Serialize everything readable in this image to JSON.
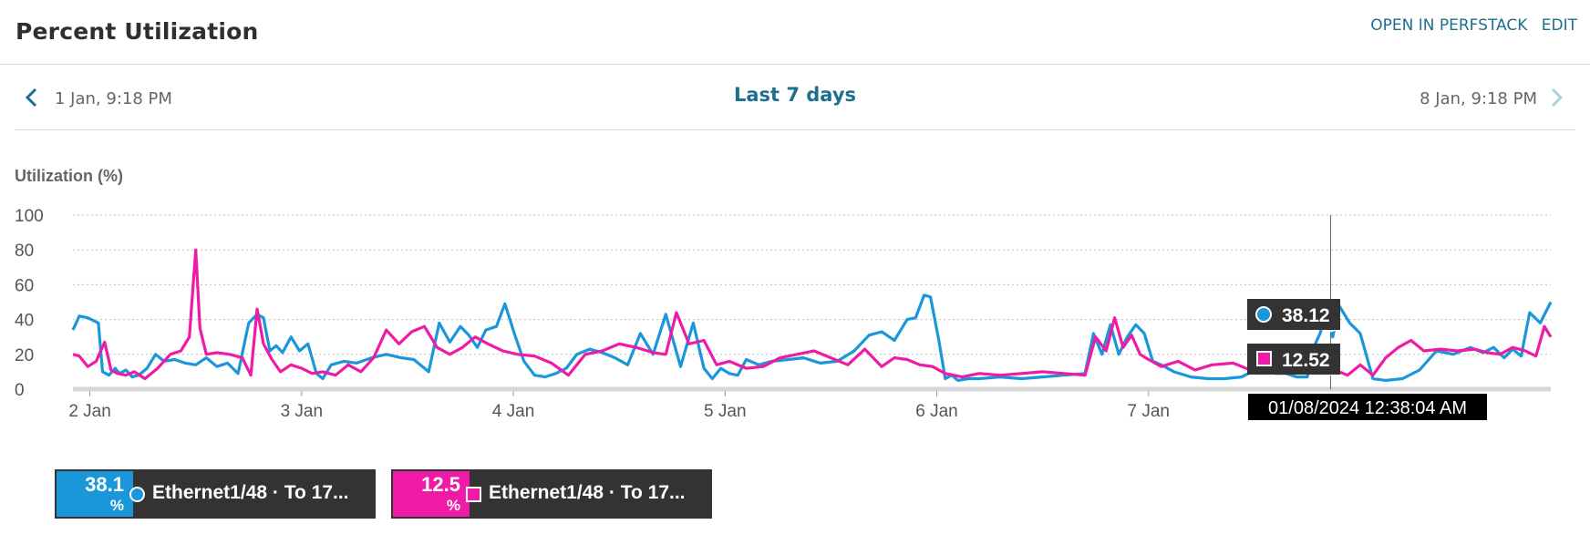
{
  "header": {
    "title": "Percent Utilization",
    "open_perfstack": "OPEN IN PERFSTACK",
    "edit": "EDIT"
  },
  "nav": {
    "start_date": "1 Jan, 9:18 PM",
    "range_label": "Last 7 days",
    "end_date": "8 Jan, 9:18 PM",
    "prev_icon": "chevron-left-icon",
    "next_icon": "chevron-right-icon"
  },
  "colors": {
    "series1": "#1a97da",
    "series2": "#ef1aa6",
    "accent": "#1c6f8f"
  },
  "chart_data": {
    "type": "line",
    "title": "Percent Utilization",
    "ylabel": "Utilization (%)",
    "xlabel": "",
    "ylim": [
      0,
      100
    ],
    "yticks": [
      0,
      20,
      40,
      60,
      80,
      100
    ],
    "xlim": [
      1.92,
      8.9
    ],
    "xticks": [
      {
        "pos": 2,
        "label": "2 Jan"
      },
      {
        "pos": 3,
        "label": "3 Jan"
      },
      {
        "pos": 4,
        "label": "4 Jan"
      },
      {
        "pos": 5,
        "label": "5 Jan"
      },
      {
        "pos": 6,
        "label": "6 Jan"
      },
      {
        "pos": 7,
        "label": "7 Jan"
      }
    ],
    "grid": true,
    "legend": "bottom",
    "series": [
      {
        "name": "Ethernet1/48 · To 17...",
        "marker": "circle",
        "x": [
          1.92,
          1.95,
          1.99,
          2.04,
          2.06,
          2.09,
          2.12,
          2.14,
          2.17,
          2.2,
          2.23,
          2.27,
          2.31,
          2.35,
          2.4,
          2.45,
          2.5,
          2.55,
          2.6,
          2.65,
          2.7,
          2.75,
          2.79,
          2.82,
          2.85,
          2.88,
          2.91,
          2.95,
          2.99,
          3.03,
          3.07,
          3.1,
          3.14,
          3.2,
          3.26,
          3.33,
          3.4,
          3.47,
          3.53,
          3.6,
          3.65,
          3.7,
          3.75,
          3.79,
          3.83,
          3.87,
          3.92,
          3.96,
          4.01,
          4.05,
          4.1,
          4.15,
          4.2,
          4.25,
          4.3,
          4.36,
          4.42,
          4.48,
          4.54,
          4.6,
          4.66,
          4.72,
          4.79,
          4.85,
          4.9,
          4.94,
          4.98,
          5.02,
          5.06,
          5.1,
          5.16,
          5.22,
          5.3,
          5.37,
          5.45,
          5.53,
          5.61,
          5.68,
          5.74,
          5.8,
          5.86,
          5.9,
          5.94,
          5.97,
          6.01,
          6.04,
          6.07,
          6.1,
          6.15,
          6.2,
          6.3,
          6.4,
          6.5,
          6.6,
          6.7,
          6.74,
          6.78,
          6.82,
          6.86,
          6.9,
          6.94,
          6.98,
          7.02,
          7.06,
          7.12,
          7.2,
          7.28,
          7.36,
          7.44,
          7.52,
          7.6,
          7.65,
          7.7,
          7.75,
          7.78,
          7.81,
          7.84,
          7.87,
          7.9,
          7.95,
          8.0,
          8.06,
          8.12,
          8.2,
          8.28,
          8.36,
          8.44,
          8.52,
          8.58,
          8.63,
          8.68,
          8.72,
          8.76,
          8.8,
          8.85,
          8.9
        ],
        "y": [
          34,
          42,
          41,
          38,
          10,
          8,
          12,
          9,
          11,
          7,
          8,
          12,
          20,
          16,
          17,
          15,
          14,
          18,
          13,
          15,
          9,
          38,
          43,
          41,
          22,
          25,
          21,
          30,
          22,
          26,
          9,
          6,
          14,
          16,
          15,
          18,
          20,
          18,
          17,
          10,
          38,
          27,
          36,
          31,
          24,
          34,
          36,
          49,
          30,
          16,
          8,
          7,
          9,
          12,
          20,
          23,
          21,
          18,
          14,
          32,
          20,
          43,
          13,
          38,
          12,
          6,
          12,
          9,
          8,
          17,
          14,
          16,
          17,
          18,
          15,
          16,
          22,
          31,
          33,
          28,
          40,
          41,
          54,
          53,
          28,
          6,
          8,
          5,
          6,
          6,
          7,
          6,
          7,
          8,
          9,
          32,
          20,
          37,
          20,
          30,
          37,
          32,
          16,
          14,
          10,
          7,
          6,
          6,
          7,
          12,
          9,
          9,
          7,
          7,
          24,
          32,
          45,
          30,
          48,
          38,
          32,
          6,
          5,
          6,
          11,
          22,
          20,
          24,
          21,
          24,
          18,
          23,
          19,
          44,
          38,
          50
        ]
      },
      {
        "name": "Ethernet1/48 · To 17...",
        "marker": "square",
        "x": [
          1.92,
          1.95,
          1.99,
          2.03,
          2.07,
          2.1,
          2.13,
          2.17,
          2.21,
          2.26,
          2.32,
          2.38,
          2.43,
          2.47,
          2.5,
          2.52,
          2.55,
          2.6,
          2.66,
          2.72,
          2.76,
          2.79,
          2.82,
          2.86,
          2.9,
          2.95,
          3.0,
          3.05,
          3.1,
          3.16,
          3.22,
          3.28,
          3.34,
          3.4,
          3.46,
          3.52,
          3.58,
          3.64,
          3.7,
          3.76,
          3.82,
          3.88,
          3.95,
          4.02,
          4.1,
          4.18,
          4.26,
          4.34,
          4.42,
          4.5,
          4.58,
          4.66,
          4.72,
          4.77,
          4.83,
          4.9,
          4.96,
          5.02,
          5.1,
          5.18,
          5.26,
          5.34,
          5.42,
          5.5,
          5.58,
          5.66,
          5.74,
          5.8,
          5.86,
          5.92,
          5.98,
          6.04,
          6.12,
          6.2,
          6.3,
          6.4,
          6.5,
          6.6,
          6.7,
          6.75,
          6.8,
          6.84,
          6.88,
          6.92,
          6.96,
          7.0,
          7.06,
          7.14,
          7.22,
          7.3,
          7.4,
          7.5,
          7.6,
          7.66,
          7.71,
          7.76,
          7.82,
          7.88,
          7.94,
          8.0,
          8.06,
          8.12,
          8.18,
          8.24,
          8.3,
          8.38,
          8.46,
          8.54,
          8.6,
          8.66,
          8.72,
          8.78,
          8.83,
          8.87,
          8.9
        ],
        "y": [
          20,
          19,
          13,
          16,
          27,
          11,
          9,
          8,
          10,
          6,
          12,
          20,
          22,
          30,
          80,
          35,
          20,
          21,
          20,
          18,
          8,
          46,
          26,
          17,
          10,
          14,
          12,
          9,
          10,
          8,
          14,
          10,
          18,
          34,
          26,
          33,
          36,
          24,
          20,
          24,
          30,
          26,
          22,
          20,
          19,
          15,
          8,
          20,
          22,
          26,
          24,
          21,
          20,
          44,
          26,
          28,
          14,
          16,
          12,
          13,
          18,
          20,
          22,
          18,
          14,
          23,
          13,
          18,
          17,
          14,
          13,
          9,
          7,
          9,
          8,
          9,
          10,
          9,
          8,
          30,
          22,
          41,
          24,
          31,
          20,
          17,
          13,
          16,
          11,
          14,
          15,
          10,
          13,
          12,
          13,
          15,
          12.52,
          11,
          8,
          14,
          8,
          18,
          24,
          28,
          22,
          23,
          22,
          23,
          21,
          20,
          24,
          22,
          19,
          36,
          30
        ]
      }
    ],
    "tooltip": {
      "x": 7.86,
      "timestamp": "01/08/2024 12:38:04 AM",
      "values": [
        38.12,
        12.52
      ]
    }
  },
  "tooltip": {
    "value1": "38.12",
    "value2": "12.52",
    "timestamp": "01/08/2024 12:38:04 AM"
  },
  "legend": [
    {
      "value": "38.1",
      "unit": "%",
      "label": "Ethernet1/48 · To 17...",
      "marker": "circle"
    },
    {
      "value": "12.5",
      "unit": "%",
      "label": "Ethernet1/48 · To 17...",
      "marker": "square"
    }
  ]
}
